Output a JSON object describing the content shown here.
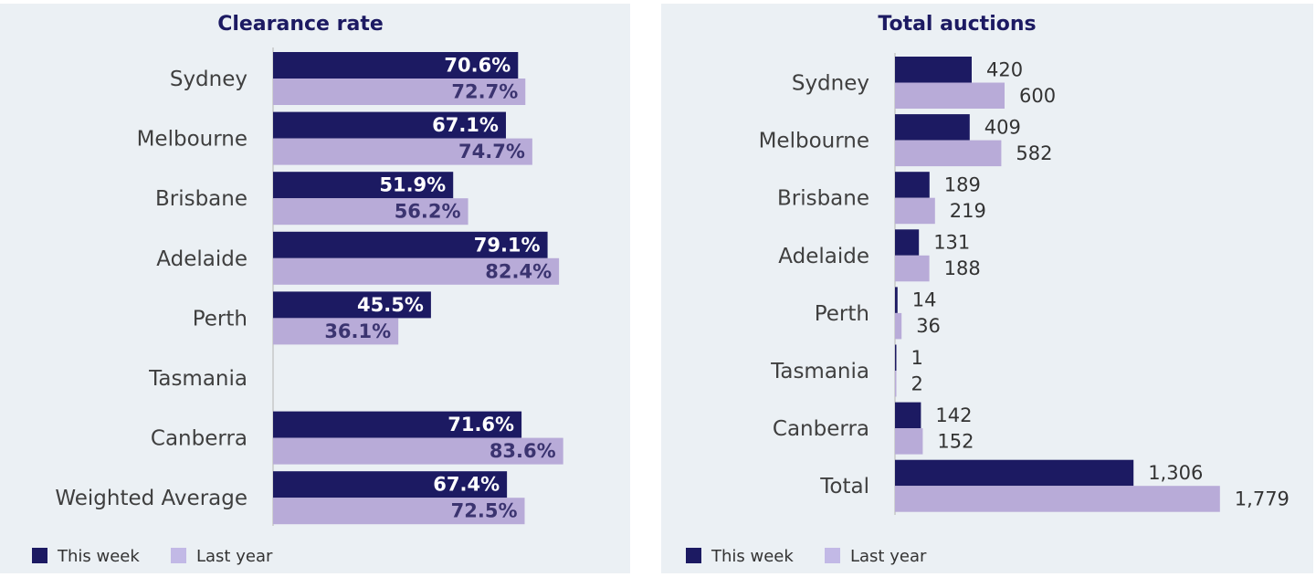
{
  "colors": {
    "this_week": "#1c1a62",
    "last_year": "#b8abd8",
    "label_on_light": "#3b3470",
    "axis": "#c8c8c8"
  },
  "chart_data": [
    {
      "type": "bar",
      "orientation": "horizontal",
      "title": "Clearance rate",
      "categories": [
        "Sydney",
        "Melbourne",
        "Brisbane",
        "Adelaide",
        "Perth",
        "Tasmania",
        "Canberra",
        "Weighted Average"
      ],
      "series": [
        {
          "name": "This week",
          "values": [
            70.6,
            67.1,
            51.9,
            79.1,
            45.5,
            null,
            71.6,
            67.4
          ]
        },
        {
          "name": "Last year",
          "values": [
            72.7,
            74.7,
            56.2,
            82.4,
            36.1,
            null,
            83.6,
            72.5
          ]
        }
      ],
      "labels": {
        "This week": [
          "70.6%",
          "67.1%",
          "51.9%",
          "79.1%",
          "45.5%",
          "",
          "71.6%",
          "67.4%"
        ],
        "Last year": [
          "72.7%",
          "74.7%",
          "56.2%",
          "82.4%",
          "36.1%",
          "",
          "83.6%",
          "72.5%"
        ]
      },
      "label_position": "inside-end",
      "xlim": [
        0,
        100
      ],
      "grid": false,
      "legend": "bottom-left"
    },
    {
      "type": "bar",
      "orientation": "horizontal",
      "title": "Total auctions",
      "categories": [
        "Sydney",
        "Melbourne",
        "Brisbane",
        "Adelaide",
        "Perth",
        "Tasmania",
        "Canberra",
        "Total"
      ],
      "series": [
        {
          "name": "This week",
          "values": [
            420,
            409,
            189,
            131,
            14,
            1,
            142,
            1306
          ]
        },
        {
          "name": "Last year",
          "values": [
            600,
            582,
            219,
            188,
            36,
            2,
            152,
            1779
          ]
        }
      ],
      "labels": {
        "This week": [
          "420",
          "409",
          "189",
          "131",
          "14",
          "1",
          "142",
          "1,306"
        ],
        "Last year": [
          "600",
          "582",
          "219",
          "188",
          "36",
          "2",
          "152",
          "1,779"
        ]
      },
      "label_position": "outside-end",
      "xlim": [
        0,
        1800
      ],
      "grid": false,
      "legend": "bottom-left"
    }
  ]
}
